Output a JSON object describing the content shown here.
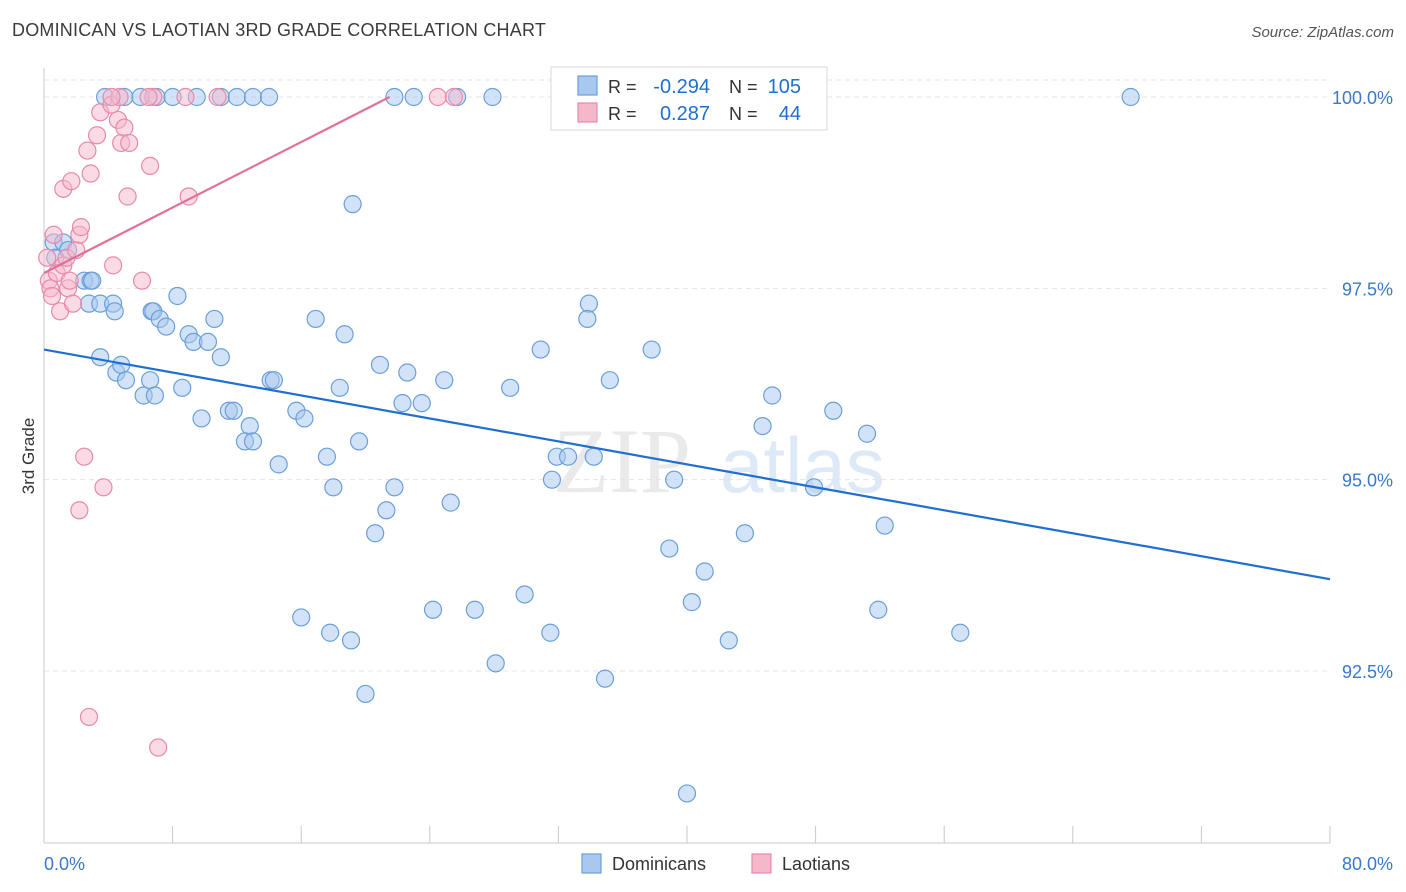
{
  "title": "DOMINICAN VS LAOTIAN 3RD GRADE CORRELATION CHART",
  "source": "Source: ZipAtlas.com",
  "watermark": {
    "zip": "ZIP",
    "atlas": "atlas"
  },
  "colors": {
    "blue": "#a8c8f0",
    "blue_stroke": "#6a9fd8",
    "blue_line": "#1f6fd0",
    "pink": "#f5b8cb",
    "pink_stroke": "#e889a8",
    "pink_line": "#e0709a",
    "axis_text": "#3a78c8",
    "grid": "#e4e4e4"
  },
  "stats": {
    "r_label": "R =",
    "n_label": "N =",
    "dominicans": {
      "r": "-0.294",
      "n": "105"
    },
    "laotians": {
      "r": "0.287",
      "n": "44"
    }
  },
  "chart_data": {
    "type": "scatter",
    "xlabel": "",
    "ylabel": "3rd Grade",
    "xlim": [
      0,
      80
    ],
    "ylim": [
      90.0,
      100.2
    ],
    "x_tick_labels": {
      "left": "0.0%",
      "right": "80.0%"
    },
    "y_ticks": [
      {
        "value": 100.0,
        "label": "100.0%"
      },
      {
        "value": 97.5,
        "label": "97.5%"
      },
      {
        "value": 95.0,
        "label": "95.0%"
      },
      {
        "value": 92.5,
        "label": "92.5%"
      }
    ],
    "series": [
      {
        "name": "Dominicans",
        "trend": {
          "x": [
            0,
            80
          ],
          "y": [
            96.7,
            93.7
          ]
        },
        "points": [
          [
            0.6,
            98.1
          ],
          [
            0.7,
            97.9
          ],
          [
            1.2,
            98.1
          ],
          [
            1.5,
            98.0
          ],
          [
            2.5,
            97.6
          ],
          [
            2.9,
            97.6
          ],
          [
            3.0,
            97.6
          ],
          [
            2.8,
            97.3
          ],
          [
            3.5,
            97.3
          ],
          [
            4.3,
            97.3
          ],
          [
            4.4,
            97.2
          ],
          [
            6.7,
            97.2
          ],
          [
            6.8,
            97.2
          ],
          [
            7.2,
            97.1
          ],
          [
            7.6,
            97.0
          ],
          [
            8.3,
            97.4
          ],
          [
            9.0,
            96.9
          ],
          [
            9.3,
            96.8
          ],
          [
            10.2,
            96.8
          ],
          [
            10.6,
            97.1
          ],
          [
            11.0,
            96.6
          ],
          [
            3.5,
            96.6
          ],
          [
            4.5,
            96.4
          ],
          [
            4.8,
            96.5
          ],
          [
            5.1,
            96.3
          ],
          [
            6.2,
            96.1
          ],
          [
            6.6,
            96.3
          ],
          [
            6.9,
            96.1
          ],
          [
            8.6,
            96.2
          ],
          [
            9.8,
            95.8
          ],
          [
            11.5,
            95.9
          ],
          [
            11.8,
            95.9
          ],
          [
            12.8,
            95.7
          ],
          [
            12.5,
            95.5
          ],
          [
            13.0,
            95.5
          ],
          [
            14.1,
            96.3
          ],
          [
            14.3,
            96.3
          ],
          [
            14.6,
            95.2
          ],
          [
            15.7,
            95.9
          ],
          [
            16.2,
            95.8
          ],
          [
            16.9,
            97.1
          ],
          [
            17.6,
            95.3
          ],
          [
            18.4,
            96.2
          ],
          [
            18.0,
            94.9
          ],
          [
            18.7,
            96.9
          ],
          [
            19.2,
            98.6
          ],
          [
            19.6,
            95.5
          ],
          [
            20.6,
            94.3
          ],
          [
            20.9,
            96.5
          ],
          [
            21.3,
            94.6
          ],
          [
            21.8,
            94.9
          ],
          [
            22.3,
            96.0
          ],
          [
            22.6,
            96.4
          ],
          [
            23.5,
            96.0
          ],
          [
            24.9,
            96.3
          ],
          [
            25.3,
            94.7
          ],
          [
            16.0,
            93.2
          ],
          [
            17.8,
            93.0
          ],
          [
            19.1,
            92.9
          ],
          [
            20.0,
            92.2
          ],
          [
            24.2,
            93.3
          ],
          [
            26.8,
            93.3
          ],
          [
            28.1,
            92.6
          ],
          [
            29.9,
            93.5
          ],
          [
            29.0,
            96.2
          ],
          [
            30.9,
            96.7
          ],
          [
            31.5,
            93.0
          ],
          [
            31.6,
            95.0
          ],
          [
            31.9,
            95.3
          ],
          [
            32.6,
            95.3
          ],
          [
            33.9,
            97.3
          ],
          [
            33.8,
            97.1
          ],
          [
            34.2,
            95.3
          ],
          [
            34.9,
            92.4
          ],
          [
            35.2,
            96.3
          ],
          [
            37.8,
            96.7
          ],
          [
            38.9,
            94.1
          ],
          [
            39.2,
            95.0
          ],
          [
            40.0,
            90.9
          ],
          [
            40.3,
            93.4
          ],
          [
            41.1,
            93.8
          ],
          [
            42.6,
            92.9
          ],
          [
            43.6,
            94.3
          ],
          [
            44.7,
            95.7
          ],
          [
            45.3,
            96.1
          ],
          [
            47.9,
            94.9
          ],
          [
            49.1,
            95.9
          ],
          [
            51.2,
            95.6
          ],
          [
            51.9,
            93.3
          ],
          [
            52.3,
            94.4
          ],
          [
            57.0,
            93.0
          ],
          [
            67.6,
            100.0
          ],
          [
            21.8,
            100.0
          ],
          [
            23.0,
            100.0
          ],
          [
            25.7,
            100.0
          ],
          [
            27.9,
            100.0
          ],
          [
            32.5,
            100.0
          ],
          [
            9.5,
            100.0
          ],
          [
            11.0,
            100.0
          ],
          [
            12.0,
            100.0
          ],
          [
            13.0,
            100.0
          ],
          [
            14.0,
            100.0
          ],
          [
            3.8,
            100.0
          ],
          [
            5.0,
            100.0
          ],
          [
            6.0,
            100.0
          ],
          [
            7.0,
            100.0
          ],
          [
            8.0,
            100.0
          ]
        ]
      },
      {
        "name": "Laotians",
        "trend": {
          "x": [
            0,
            21.5
          ],
          "y": [
            97.7,
            100.0
          ]
        },
        "points": [
          [
            0.2,
            97.9
          ],
          [
            0.3,
            97.6
          ],
          [
            0.4,
            97.5
          ],
          [
            0.5,
            97.4
          ],
          [
            0.6,
            98.2
          ],
          [
            0.8,
            97.7
          ],
          [
            1.0,
            97.2
          ],
          [
            1.2,
            97.8
          ],
          [
            1.4,
            97.9
          ],
          [
            1.5,
            97.5
          ],
          [
            1.6,
            97.6
          ],
          [
            1.8,
            97.3
          ],
          [
            2.0,
            98.0
          ],
          [
            2.2,
            98.2
          ],
          [
            2.3,
            98.3
          ],
          [
            1.2,
            98.8
          ],
          [
            1.7,
            98.9
          ],
          [
            2.7,
            99.3
          ],
          [
            2.9,
            99.0
          ],
          [
            3.3,
            99.5
          ],
          [
            3.5,
            99.8
          ],
          [
            4.2,
            99.9
          ],
          [
            4.6,
            99.7
          ],
          [
            4.7,
            100.0
          ],
          [
            4.8,
            99.4
          ],
          [
            5.0,
            99.6
          ],
          [
            5.2,
            98.7
          ],
          [
            5.3,
            99.4
          ],
          [
            6.6,
            99.1
          ],
          [
            6.8,
            100.0
          ],
          [
            8.8,
            100.0
          ],
          [
            9.0,
            98.7
          ],
          [
            10.8,
            100.0
          ],
          [
            4.3,
            97.8
          ],
          [
            6.1,
            97.6
          ],
          [
            2.5,
            95.3
          ],
          [
            3.7,
            94.9
          ],
          [
            2.2,
            94.6
          ],
          [
            2.8,
            91.9
          ],
          [
            7.1,
            91.5
          ],
          [
            4.2,
            100.0
          ],
          [
            6.5,
            100.0
          ],
          [
            24.5,
            100.0
          ],
          [
            25.5,
            100.0
          ]
        ]
      }
    ],
    "legend": {
      "position": "bottom-center",
      "entries": [
        "Dominicans",
        "Laotians"
      ]
    },
    "grid": true
  }
}
